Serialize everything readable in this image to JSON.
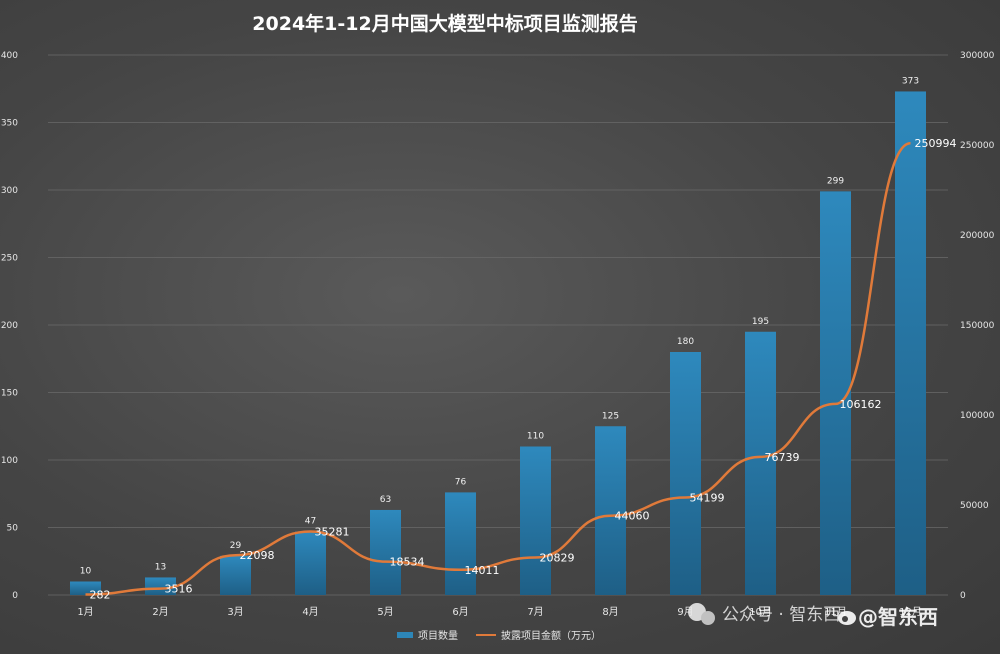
{
  "chart_data": {
    "type": "bar",
    "title": "2024年1-12月中国大模型中标项目监测报告",
    "categories": [
      "1月",
      "2月",
      "3月",
      "4月",
      "5月",
      "6月",
      "7月",
      "8月",
      "9月",
      "10月",
      "11月",
      "12月"
    ],
    "series": [
      {
        "name": "项目数量",
        "type": "bar",
        "axis": "left",
        "values": [
          10,
          13,
          29,
          47,
          63,
          76,
          110,
          125,
          180,
          195,
          299,
          373
        ]
      },
      {
        "name": "披露项目金额（万元）",
        "type": "line",
        "axis": "right",
        "values": [
          282,
          3516,
          22098,
          35281,
          18534,
          14011,
          20829,
          44060,
          54199,
          76739,
          106162,
          250994
        ]
      }
    ],
    "ylim_left": [
      0,
      400
    ],
    "ylim_right": [
      0,
      300000
    ],
    "yticks_left": [
      0,
      50,
      100,
      150,
      200,
      250,
      300,
      350,
      400
    ],
    "yticks_right": [
      0,
      50000,
      100000,
      150000,
      200000,
      250000,
      300000
    ],
    "grid": true,
    "legend_position": "bottom",
    "colors": {
      "bar": "#2d86b8",
      "line": "#e07a3a",
      "grid": "#6a6a6a"
    }
  },
  "watermark": {
    "text": "公众号 · 智东西",
    "brand": "@智东西"
  }
}
